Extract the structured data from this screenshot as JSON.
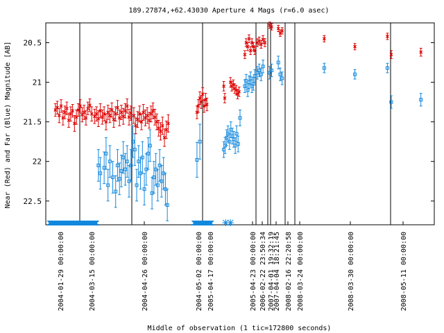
{
  "chart_data": {
    "type": "scatter",
    "title": "189.27874,+62.43030   Aperture 4 Mags (r=6.0 asec)",
    "xlabel": "Middle of observation (1 tic=172800 seconds)",
    "ylabel": "Near (Red) and Far (Blue) Magnitude [AB]",
    "ylim": [
      22.8,
      20.25
    ],
    "y_reversed": true,
    "yticks": [
      "20.5",
      "21",
      "21.5",
      "22",
      "22.5"
    ],
    "grid": false,
    "colors": {
      "near": "#dd0000",
      "far": "#1188dd",
      "axis": "#000000"
    },
    "xtick_labels": [
      "2004-01-29 00:00:00",
      "2004-03-15 00:00:00",
      "2004-04-26 00:00:00",
      "2004-05-02 00:00:00",
      "2005-04-17 00:00:00",
      "2005-04-23 00:00:00",
      "2006-02-22 23:50:34",
      "2007-04-01 19:32:19",
      "2007-04-04 18:21:45",
      "2008-02-16 22:20:58",
      "2008-03-24 00:00:00",
      "2008-03-30 00:00:00",
      "2008-05-11 00:00:00"
    ],
    "segment_boundaries": [
      "2004-03-15 00:00:00",
      "2004-04-26 00:00:00",
      "2005-04-17 00:00:00",
      "2006-02-22 23:50:34",
      "2007-04-01 19:32:19",
      "2007-04-04 18:21:45",
      "2008-02-16 22:20:58",
      "2008-03-24 00:00:00",
      "2008-05-11 00:00:00"
    ],
    "series": [
      {
        "name": "Near (Red)",
        "points": [
          {
            "x": 0.5,
            "y": 21.35,
            "err": 0.08
          },
          {
            "x": 0.6,
            "y": 21.32,
            "err": 0.08
          },
          {
            "x": 0.7,
            "y": 21.42,
            "err": 0.09
          },
          {
            "x": 0.8,
            "y": 21.3,
            "err": 0.08
          },
          {
            "x": 0.9,
            "y": 21.45,
            "err": 0.09
          },
          {
            "x": 1.0,
            "y": 21.38,
            "err": 0.08
          },
          {
            "x": 1.1,
            "y": 21.33,
            "err": 0.08
          },
          {
            "x": 1.2,
            "y": 21.48,
            "err": 0.09
          },
          {
            "x": 1.3,
            "y": 21.4,
            "err": 0.09
          },
          {
            "x": 1.4,
            "y": 21.36,
            "err": 0.08
          },
          {
            "x": 1.5,
            "y": 21.52,
            "err": 0.1
          },
          {
            "x": 1.6,
            "y": 21.44,
            "err": 0.09
          },
          {
            "x": 1.7,
            "y": 21.35,
            "err": 0.08
          },
          {
            "x": 1.8,
            "y": 21.3,
            "err": 0.08
          },
          {
            "x": 1.9,
            "y": 21.41,
            "err": 0.09
          },
          {
            "x": 2.0,
            "y": 21.38,
            "err": 0.09
          },
          {
            "x": 2.1,
            "y": 21.45,
            "err": 0.09
          },
          {
            "x": 2.2,
            "y": 21.33,
            "err": 0.08
          },
          {
            "x": 2.3,
            "y": 21.29,
            "err": 0.08
          },
          {
            "x": 2.4,
            "y": 21.4,
            "err": 0.09
          },
          {
            "x": 2.55,
            "y": 21.43,
            "err": 0.09
          },
          {
            "x": 2.65,
            "y": 21.4,
            "err": 0.09
          },
          {
            "x": 2.75,
            "y": 21.46,
            "err": 0.1
          },
          {
            "x": 2.85,
            "y": 21.36,
            "err": 0.09
          },
          {
            "x": 2.95,
            "y": 21.44,
            "err": 0.09
          },
          {
            "x": 3.05,
            "y": 21.4,
            "err": 0.09
          },
          {
            "x": 3.15,
            "y": 21.5,
            "err": 0.1
          },
          {
            "x": 3.25,
            "y": 21.38,
            "err": 0.09
          },
          {
            "x": 3.35,
            "y": 21.42,
            "err": 0.09
          },
          {
            "x": 3.45,
            "y": 21.35,
            "err": 0.09
          },
          {
            "x": 3.55,
            "y": 21.47,
            "err": 0.1
          },
          {
            "x": 3.65,
            "y": 21.4,
            "err": 0.09
          },
          {
            "x": 3.75,
            "y": 21.32,
            "err": 0.09
          },
          {
            "x": 3.85,
            "y": 21.45,
            "err": 0.1
          },
          {
            "x": 3.95,
            "y": 21.38,
            "err": 0.09
          },
          {
            "x": 4.05,
            "y": 21.43,
            "err": 0.1
          },
          {
            "x": 4.15,
            "y": 21.36,
            "err": 0.09
          },
          {
            "x": 4.25,
            "y": 21.3,
            "err": 0.09
          },
          {
            "x": 4.35,
            "y": 21.44,
            "err": 0.1
          },
          {
            "x": 4.45,
            "y": 21.39,
            "err": 0.09
          },
          {
            "x": 4.6,
            "y": 21.42,
            "err": 0.1
          },
          {
            "x": 4.7,
            "y": 21.55,
            "err": 0.1
          },
          {
            "x": 4.8,
            "y": 21.47,
            "err": 0.1
          },
          {
            "x": 4.9,
            "y": 21.4,
            "err": 0.1
          },
          {
            "x": 5.0,
            "y": 21.5,
            "err": 0.1
          },
          {
            "x": 5.1,
            "y": 21.38,
            "err": 0.1
          },
          {
            "x": 5.2,
            "y": 21.45,
            "err": 0.1
          },
          {
            "x": 5.3,
            "y": 21.42,
            "err": 0.1
          },
          {
            "x": 5.4,
            "y": 21.48,
            "err": 0.1
          },
          {
            "x": 5.5,
            "y": 21.4,
            "err": 0.1
          },
          {
            "x": 5.6,
            "y": 21.36,
            "err": 0.1
          },
          {
            "x": 5.7,
            "y": 21.44,
            "err": 0.1
          },
          {
            "x": 5.8,
            "y": 21.5,
            "err": 0.1
          },
          {
            "x": 5.9,
            "y": 21.58,
            "err": 0.1
          },
          {
            "x": 6.0,
            "y": 21.62,
            "err": 0.11
          },
          {
            "x": 6.1,
            "y": 21.55,
            "err": 0.11
          },
          {
            "x": 6.2,
            "y": 21.7,
            "err": 0.11
          },
          {
            "x": 6.3,
            "y": 21.6,
            "err": 0.11
          },
          {
            "x": 6.4,
            "y": 21.52,
            "err": 0.11
          },
          {
            "x": 7.9,
            "y": 21.38,
            "err": 0.08
          },
          {
            "x": 7.97,
            "y": 21.3,
            "err": 0.08
          },
          {
            "x": 8.05,
            "y": 21.2,
            "err": 0.08
          },
          {
            "x": 8.12,
            "y": 21.25,
            "err": 0.08
          },
          {
            "x": 8.2,
            "y": 21.15,
            "err": 0.08
          },
          {
            "x": 8.27,
            "y": 21.3,
            "err": 0.08
          },
          {
            "x": 8.35,
            "y": 21.22,
            "err": 0.08
          },
          {
            "x": 8.42,
            "y": 21.28,
            "err": 0.08
          },
          {
            "x": 9.3,
            "y": 21.05,
            "err": 0.06
          },
          {
            "x": 9.35,
            "y": 21.2,
            "err": 0.06
          },
          {
            "x": 9.65,
            "y": 21.0,
            "err": 0.06
          },
          {
            "x": 9.72,
            "y": 21.05,
            "err": 0.06
          },
          {
            "x": 9.8,
            "y": 21.03,
            "err": 0.06
          },
          {
            "x": 9.87,
            "y": 21.08,
            "err": 0.06
          },
          {
            "x": 9.95,
            "y": 21.1,
            "err": 0.06
          },
          {
            "x": 10.02,
            "y": 21.15,
            "err": 0.06
          },
          {
            "x": 10.1,
            "y": 21.12,
            "err": 0.06
          },
          {
            "x": 10.4,
            "y": 20.65,
            "err": 0.05
          },
          {
            "x": 10.47,
            "y": 20.5,
            "err": 0.05
          },
          {
            "x": 10.55,
            "y": 20.55,
            "err": 0.05
          },
          {
            "x": 10.62,
            "y": 20.45,
            "err": 0.05
          },
          {
            "x": 10.7,
            "y": 20.6,
            "err": 0.05
          },
          {
            "x": 10.77,
            "y": 20.5,
            "err": 0.05
          },
          {
            "x": 10.85,
            "y": 20.55,
            "err": 0.05
          },
          {
            "x": 10.92,
            "y": 20.6,
            "err": 0.05
          },
          {
            "x": 11.05,
            "y": 20.5,
            "err": 0.05
          },
          {
            "x": 11.15,
            "y": 20.48,
            "err": 0.05
          },
          {
            "x": 11.25,
            "y": 20.52,
            "err": 0.05
          },
          {
            "x": 11.35,
            "y": 20.46,
            "err": 0.05
          },
          {
            "x": 11.45,
            "y": 20.5,
            "err": 0.05
          },
          {
            "x": 11.7,
            "y": 20.28,
            "err": 0.04
          },
          {
            "x": 11.8,
            "y": 20.3,
            "err": 0.04
          },
          {
            "x": 12.15,
            "y": 20.32,
            "err": 0.04
          },
          {
            "x": 12.25,
            "y": 20.38,
            "err": 0.04
          },
          {
            "x": 12.35,
            "y": 20.35,
            "err": 0.04
          },
          {
            "x": 14.55,
            "y": 20.45,
            "err": 0.04
          },
          {
            "x": 16.15,
            "y": 20.55,
            "err": 0.04
          },
          {
            "x": 17.85,
            "y": 20.42,
            "err": 0.04
          },
          {
            "x": 18.05,
            "y": 20.65,
            "err": 0.05
          },
          {
            "x": 19.6,
            "y": 20.62,
            "err": 0.05
          }
        ]
      },
      {
        "name": "Far (Blue)",
        "points": [
          {
            "x": 2.75,
            "y": 22.05,
            "err": 0.2
          },
          {
            "x": 2.85,
            "y": 22.15,
            "err": 0.2
          },
          {
            "x": 3.05,
            "y": 22.08,
            "err": 0.2
          },
          {
            "x": 3.15,
            "y": 21.9,
            "err": 0.2
          },
          {
            "x": 3.25,
            "y": 22.3,
            "err": 0.2
          },
          {
            "x": 3.35,
            "y": 22.0,
            "err": 0.2
          },
          {
            "x": 3.5,
            "y": 22.2,
            "err": 0.2
          },
          {
            "x": 3.65,
            "y": 22.38,
            "err": 0.2
          },
          {
            "x": 3.75,
            "y": 22.05,
            "err": 0.2
          },
          {
            "x": 3.85,
            "y": 22.22,
            "err": 0.2
          },
          {
            "x": 3.95,
            "y": 22.12,
            "err": 0.2
          },
          {
            "x": 4.05,
            "y": 21.95,
            "err": 0.2
          },
          {
            "x": 4.15,
            "y": 22.1,
            "err": 0.2
          },
          {
            "x": 4.25,
            "y": 22.0,
            "err": 0.2
          },
          {
            "x": 4.35,
            "y": 22.25,
            "err": 0.2
          },
          {
            "x": 4.45,
            "y": 22.05,
            "err": 0.2
          },
          {
            "x": 4.55,
            "y": 21.75,
            "err": 0.2
          },
          {
            "x": 4.65,
            "y": 21.85,
            "err": 0.2
          },
          {
            "x": 4.75,
            "y": 22.3,
            "err": 0.2
          },
          {
            "x": 4.85,
            "y": 22.0,
            "err": 0.2
          },
          {
            "x": 4.95,
            "y": 22.15,
            "err": 0.2
          },
          {
            "x": 5.05,
            "y": 21.95,
            "err": 0.2
          },
          {
            "x": 5.15,
            "y": 22.35,
            "err": 0.2
          },
          {
            "x": 5.25,
            "y": 22.1,
            "err": 0.2
          },
          {
            "x": 5.35,
            "y": 21.9,
            "err": 0.2
          },
          {
            "x": 5.45,
            "y": 21.8,
            "err": 0.2
          },
          {
            "x": 5.55,
            "y": 22.4,
            "err": 0.2
          },
          {
            "x": 5.65,
            "y": 22.2,
            "err": 0.2
          },
          {
            "x": 5.75,
            "y": 22.1,
            "err": 0.2
          },
          {
            "x": 5.85,
            "y": 22.3,
            "err": 0.2
          },
          {
            "x": 5.95,
            "y": 22.05,
            "err": 0.2
          },
          {
            "x": 6.05,
            "y": 22.25,
            "err": 0.2
          },
          {
            "x": 6.15,
            "y": 22.15,
            "err": 0.2
          },
          {
            "x": 6.25,
            "y": 22.35,
            "err": 0.2
          },
          {
            "x": 6.35,
            "y": 22.55,
            "err": 0.2
          },
          {
            "x": 7.9,
            "y": 21.98,
            "err": 0.22
          },
          {
            "x": 8.05,
            "y": 21.75,
            "err": 0.22
          },
          {
            "x": 9.3,
            "y": 21.85,
            "err": 0.1
          },
          {
            "x": 9.37,
            "y": 21.8,
            "err": 0.1
          },
          {
            "x": 9.45,
            "y": 21.7,
            "err": 0.1
          },
          {
            "x": 9.52,
            "y": 21.65,
            "err": 0.1
          },
          {
            "x": 9.6,
            "y": 21.75,
            "err": 0.1
          },
          {
            "x": 9.67,
            "y": 21.6,
            "err": 0.1
          },
          {
            "x": 9.75,
            "y": 21.68,
            "err": 0.1
          },
          {
            "x": 9.82,
            "y": 21.72,
            "err": 0.1
          },
          {
            "x": 9.9,
            "y": 21.8,
            "err": 0.1
          },
          {
            "x": 9.97,
            "y": 21.65,
            "err": 0.1
          },
          {
            "x": 10.05,
            "y": 21.78,
            "err": 0.1
          },
          {
            "x": 10.15,
            "y": 21.45,
            "err": 0.1
          },
          {
            "x": 10.4,
            "y": 21.05,
            "err": 0.08
          },
          {
            "x": 10.47,
            "y": 20.98,
            "err": 0.08
          },
          {
            "x": 10.55,
            "y": 21.1,
            "err": 0.08
          },
          {
            "x": 10.62,
            "y": 21.0,
            "err": 0.08
          },
          {
            "x": 10.7,
            "y": 20.95,
            "err": 0.08
          },
          {
            "x": 10.77,
            "y": 21.05,
            "err": 0.08
          },
          {
            "x": 10.85,
            "y": 21.02,
            "err": 0.08
          },
          {
            "x": 10.92,
            "y": 20.92,
            "err": 0.08
          },
          {
            "x": 11.05,
            "y": 20.88,
            "err": 0.08
          },
          {
            "x": 11.15,
            "y": 20.85,
            "err": 0.08
          },
          {
            "x": 11.25,
            "y": 20.9,
            "err": 0.08
          },
          {
            "x": 11.35,
            "y": 20.8,
            "err": 0.08
          },
          {
            "x": 11.7,
            "y": 20.88,
            "err": 0.08
          },
          {
            "x": 11.8,
            "y": 20.85,
            "err": 0.08
          },
          {
            "x": 12.15,
            "y": 20.75,
            "err": 0.08
          },
          {
            "x": 12.25,
            "y": 20.9,
            "err": 0.08
          },
          {
            "x": 12.35,
            "y": 20.95,
            "err": 0.08
          },
          {
            "x": 14.55,
            "y": 20.82,
            "err": 0.06
          },
          {
            "x": 16.15,
            "y": 20.9,
            "err": 0.06
          },
          {
            "x": 17.85,
            "y": 20.82,
            "err": 0.06
          },
          {
            "x": 18.05,
            "y": 21.25,
            "err": 0.08
          },
          {
            "x": 19.6,
            "y": 21.22,
            "err": 0.08
          }
        ]
      }
    ],
    "bottom_markers": {
      "triangles": [
        0.3,
        0.55,
        0.8,
        1.05,
        1.3,
        1.55,
        1.8,
        2.05,
        2.3,
        2.55,
        7.85,
        8.1,
        8.35,
        8.55
      ],
      "stars": [
        9.4,
        9.65
      ]
    }
  }
}
